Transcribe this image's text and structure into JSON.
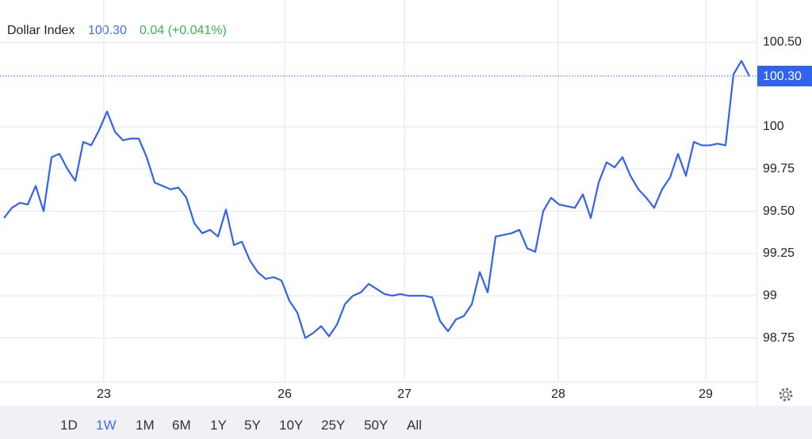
{
  "header": {
    "name": "Dollar Index",
    "last_price": "100.30",
    "change": "0.04 (+0.041%)"
  },
  "chart_data": {
    "type": "line",
    "color": "#2f63f0",
    "values": [
      99.46,
      99.52,
      99.55,
      99.54,
      99.65,
      99.5,
      99.82,
      99.84,
      99.75,
      99.68,
      99.91,
      99.89,
      99.98,
      100.09,
      99.97,
      99.92,
      99.93,
      99.93,
      99.82,
      99.67,
      99.65,
      99.63,
      99.64,
      99.58,
      99.43,
      99.37,
      99.39,
      99.35,
      99.51,
      99.3,
      99.32,
      99.21,
      99.14,
      99.1,
      99.11,
      99.09,
      98.97,
      98.9,
      98.75,
      98.78,
      98.82,
      98.76,
      98.83,
      98.95,
      99.0,
      99.02,
      99.07,
      99.04,
      99.01,
      99.0,
      99.01,
      99.0,
      99.0,
      99.0,
      98.99,
      98.85,
      98.79,
      98.86,
      98.88,
      98.95,
      99.14,
      99.02,
      99.35,
      99.36,
      99.37,
      99.39,
      99.28,
      99.26,
      99.5,
      99.58,
      99.54,
      99.53,
      99.52,
      99.6,
      99.46,
      99.67,
      99.79,
      99.76,
      99.82,
      99.71,
      99.63,
      99.58,
      99.52,
      99.63,
      99.7,
      99.84,
      99.71,
      99.91,
      99.89,
      99.89,
      99.9,
      99.89,
      100.31,
      100.39,
      100.3
    ],
    "xlim": [
      -0.5,
      95
    ],
    "xticks": [
      {
        "value": 12.6,
        "label": "23"
      },
      {
        "value": 35.4,
        "label": "26"
      },
      {
        "value": 50.5,
        "label": "27"
      },
      {
        "value": 69.9,
        "label": "28"
      },
      {
        "value": 88.5,
        "label": "29"
      }
    ],
    "ylim": [
      98.49,
      100.75
    ],
    "yticks": [
      {
        "value": 100.5,
        "label": "100.50"
      },
      100,
      99.75,
      {
        "value": 99.5,
        "label": "99.50"
      },
      99.25,
      99,
      98.75
    ],
    "grid": true
  },
  "timeframes": [
    "1D",
    "1W",
    "1M",
    "6M",
    "1Y",
    "5Y",
    "10Y",
    "25Y",
    "50Y",
    "All"
  ],
  "active_timeframe": 1
}
